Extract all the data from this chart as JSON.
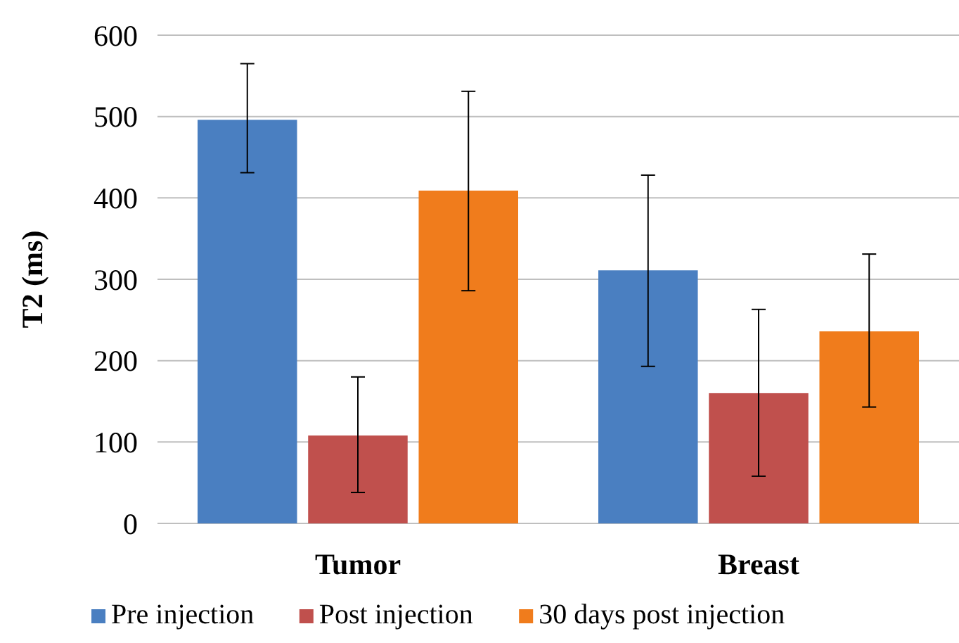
{
  "chart_data": {
    "type": "bar",
    "ylabel": "T2 (ms)",
    "categories": [
      "Tumor",
      "Breast"
    ],
    "series": [
      {
        "name": "Pre injection",
        "color": "#4a7fc1",
        "values": [
          496,
          311
        ],
        "errors": [
          [
            431,
            565
          ],
          [
            193,
            428
          ]
        ]
      },
      {
        "name": "Post injection",
        "color": "#c0504d",
        "values": [
          108,
          160
        ],
        "errors": [
          [
            38,
            180
          ],
          [
            58,
            263
          ]
        ]
      },
      {
        "name": "30 days post injection",
        "color": "#f07c1c",
        "values": [
          409,
          236
        ],
        "errors": [
          [
            286,
            531
          ],
          [
            143,
            331
          ]
        ]
      }
    ],
    "ylim": [
      0,
      600
    ],
    "yticks": [
      0,
      100,
      200,
      300,
      400,
      500,
      600
    ],
    "grid": "y",
    "legend": "bottom"
  }
}
